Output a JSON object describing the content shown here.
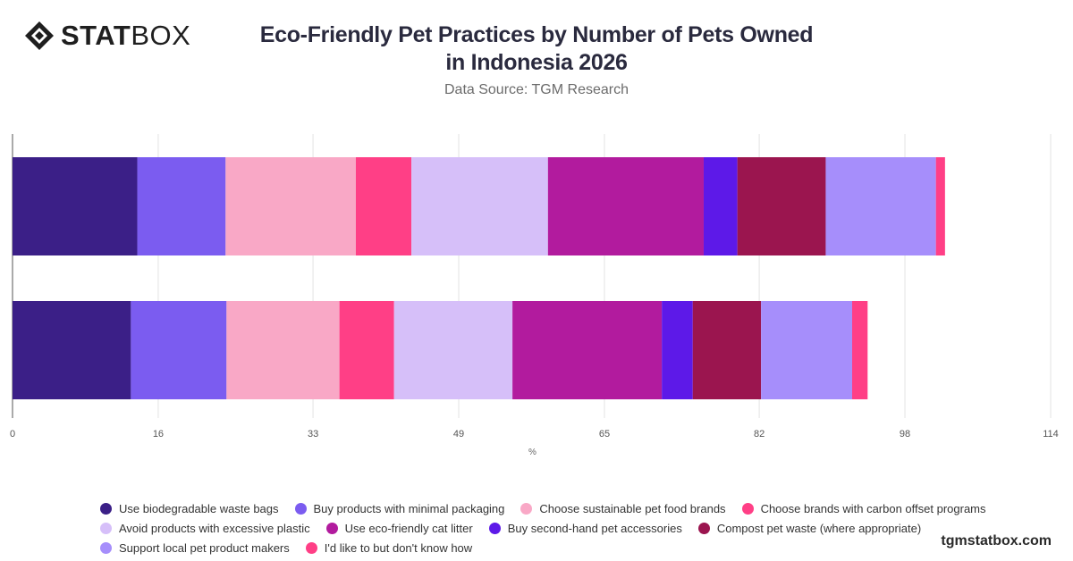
{
  "header": {
    "logo_bold": "STAT",
    "logo_light": "BOX",
    "title_line1": "Eco-Friendly Pet Practices by Number of Pets Owned",
    "title_line2": "in Indonesia 2026",
    "subtitle": "Data Source: TGM Research"
  },
  "footer": {
    "brand": "tgmstatbox.com"
  },
  "chart_data": {
    "type": "bar",
    "orientation": "horizontal",
    "stacked": true,
    "title": "Eco-Friendly Pet Practices by Number of Pets Owned in Indonesia 2026",
    "subtitle": "Data Source: TGM Research",
    "xlabel": "%",
    "ylabel": "",
    "xlim": [
      0,
      114
    ],
    "xticks": [
      "0",
      "16",
      "33",
      "49",
      "65",
      "82",
      "98",
      "114"
    ],
    "grid": true,
    "legend_position": "bottom",
    "categories": [
      "",
      ""
    ],
    "series": [
      {
        "name": "Use biodegradable waste bags",
        "color": "#3b1f87",
        "values": [
          13.7,
          13.0
        ]
      },
      {
        "name": "Buy products with minimal packaging",
        "color": "#7b5cf0",
        "values": [
          9.7,
          10.5
        ]
      },
      {
        "name": "Choose sustainable pet food brands",
        "color": "#f9a8c6",
        "values": [
          14.3,
          12.4
        ]
      },
      {
        "name": "Choose brands with carbon offset programs",
        "color": "#ff3f86",
        "values": [
          6.1,
          6.0
        ]
      },
      {
        "name": "Avoid products with excessive plastic",
        "color": "#d6bff9",
        "values": [
          15.0,
          13.0
        ]
      },
      {
        "name": "Use eco-friendly cat litter",
        "color": "#b21b9e",
        "values": [
          17.1,
          16.4
        ]
      },
      {
        "name": "Buy second-hand pet accessories",
        "color": "#5d19e8",
        "values": [
          3.7,
          3.4
        ]
      },
      {
        "name": "Compost pet waste (where appropriate)",
        "color": "#9b154f",
        "values": [
          9.7,
          7.5
        ]
      },
      {
        "name": "Support local pet product makers",
        "color": "#a68efb",
        "values": [
          12.1,
          10.0
        ]
      },
      {
        "name": "I'd like to but don't know how",
        "color": "#ff3f86",
        "values": [
          1.0,
          1.7
        ]
      }
    ]
  }
}
